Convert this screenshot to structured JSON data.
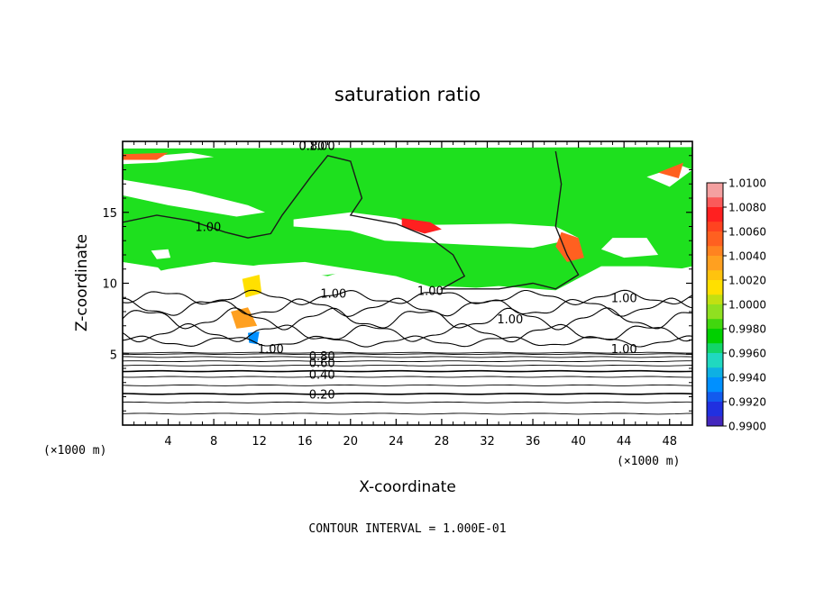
{
  "chart_data": {
    "type": "heatmap",
    "title": "saturation ratio",
    "xlabel": "X-coordinate",
    "ylabel": "Z-coordinate",
    "x_unit_note": "(×1000 m)",
    "x_unit_note_right": "(×1000 m)",
    "xlim": [
      0,
      50
    ],
    "ylim": [
      0,
      20
    ],
    "x_ticks": [
      4,
      8,
      12,
      16,
      20,
      24,
      28,
      32,
      36,
      40,
      44,
      48
    ],
    "y_ticks": [
      5,
      10,
      15
    ],
    "contour_interval_note": "CONTOUR INTERVAL = 1.000E-01",
    "colorbar": {
      "levels": [
        "1.0100",
        "1.0080",
        "1.0060",
        "1.0040",
        "1.0020",
        "1.0000",
        "0.9980",
        "0.9960",
        "0.9940",
        "0.9920",
        "0.9900"
      ],
      "colors": [
        "#f4a0a0",
        "#ff2020",
        "#ff6020",
        "#ffa020",
        "#ffe000",
        "#90e020",
        "#00d000",
        "#20d8c0",
        "#0090ff",
        "#2030e0",
        "#6020a0"
      ]
    },
    "contour_labels": [
      {
        "text": "1.00",
        "x": 17.5,
        "y": 19.7
      },
      {
        "text": "0.80",
        "x": 16.6,
        "y": 19.7
      },
      {
        "text": "1.00",
        "x": 7.5,
        "y": 14.0
      },
      {
        "text": "1.00",
        "x": 18.5,
        "y": 9.3
      },
      {
        "text": "1.00",
        "x": 27.0,
        "y": 9.5
      },
      {
        "text": "1.00",
        "x": 34.0,
        "y": 7.5
      },
      {
        "text": "1.00",
        "x": 44.0,
        "y": 9.0
      },
      {
        "text": "1.00",
        "x": 44.0,
        "y": 5.4
      },
      {
        "text": "1.00",
        "x": 13.0,
        "y": 5.4
      },
      {
        "text": "0.80",
        "x": 17.5,
        "y": 4.9
      },
      {
        "text": "0.60",
        "x": 17.5,
        "y": 4.4
      },
      {
        "text": "0.40",
        "x": 17.5,
        "y": 3.6
      },
      {
        "text": "0.20",
        "x": 17.5,
        "y": 2.2
      }
    ],
    "filled_regions": [
      {
        "level": "1.0000",
        "color": "#1ee01e",
        "polygon": [
          [
            0,
            19.3
          ],
          [
            50,
            19.3
          ],
          [
            50,
            11.0
          ],
          [
            46,
            11.2
          ],
          [
            42,
            11.2
          ],
          [
            38,
            9.5
          ],
          [
            33,
            9.8
          ],
          [
            28,
            9.5
          ],
          [
            24,
            10.5
          ],
          [
            20,
            11.0
          ],
          [
            16,
            11.5
          ],
          [
            12,
            11.3
          ],
          [
            8,
            10.8
          ],
          [
            4,
            11.0
          ],
          [
            0,
            11.5
          ]
        ]
      },
      {
        "level": "1.0000",
        "color": "#1ee01e",
        "polygon": [
          [
            0,
            11.5
          ],
          [
            3,
            11.2
          ],
          [
            5,
            9.5
          ],
          [
            7,
            8.5
          ],
          [
            10,
            9.5
          ],
          [
            13,
            10.0
          ],
          [
            12,
            11.2
          ],
          [
            8,
            11.0
          ],
          [
            4,
            11.2
          ],
          [
            0,
            11.8
          ]
        ]
      },
      {
        "level": "1.0000",
        "color": "#1ee01e",
        "polygon": [
          [
            18,
            8.6
          ],
          [
            22,
            9.5
          ],
          [
            20,
            10.8
          ],
          [
            17,
            10.5
          ]
        ]
      },
      {
        "level": "1.0000",
        "color": "#1ee01e",
        "polygon": [
          [
            0,
            19.5
          ],
          [
            50,
            19.6
          ],
          [
            50,
            19.3
          ],
          [
            0,
            19.2
          ]
        ]
      }
    ],
    "unsaturated_regions": [
      {
        "polygon": [
          [
            0,
            17.3
          ],
          [
            6,
            16.5
          ],
          [
            11,
            15.5
          ],
          [
            12.5,
            15.0
          ],
          [
            10,
            14.7
          ],
          [
            4,
            15.5
          ],
          [
            0,
            16.2
          ]
        ]
      },
      {
        "polygon": [
          [
            0,
            18.8
          ],
          [
            6,
            19.2
          ],
          [
            8,
            18.9
          ],
          [
            3,
            18.5
          ],
          [
            0,
            18.4
          ]
        ]
      },
      {
        "polygon": [
          [
            15,
            14.5
          ],
          [
            20,
            15.0
          ],
          [
            24,
            14.6
          ],
          [
            26,
            14.1
          ],
          [
            34,
            14.2
          ],
          [
            38,
            14.0
          ],
          [
            40,
            13.2
          ],
          [
            36,
            12.5
          ],
          [
            28,
            12.8
          ],
          [
            23,
            13.0
          ],
          [
            20,
            13.7
          ],
          [
            15,
            14.0
          ]
        ]
      },
      {
        "polygon": [
          [
            43,
            13.2
          ],
          [
            46,
            13.2
          ],
          [
            47,
            12.0
          ],
          [
            44,
            11.8
          ],
          [
            42,
            12.4
          ]
        ]
      },
      {
        "polygon": [
          [
            46,
            17.5
          ],
          [
            49,
            18.3
          ],
          [
            50,
            18.0
          ],
          [
            48,
            16.8
          ]
        ]
      },
      {
        "polygon": [
          [
            2.5,
            12.3
          ],
          [
            4,
            12.4
          ],
          [
            4.2,
            11.8
          ],
          [
            3,
            11.7
          ]
        ]
      },
      {
        "polygon": [
          [
            0,
            10.3
          ],
          [
            4,
            11.0
          ],
          [
            8,
            11.5
          ],
          [
            12,
            11.2
          ],
          [
            15,
            10.8
          ],
          [
            18,
            10.5
          ],
          [
            20,
            11.0
          ],
          [
            22,
            10.5
          ],
          [
            24,
            9.3
          ],
          [
            28,
            9.8
          ],
          [
            33,
            9.6
          ],
          [
            38,
            9.5
          ],
          [
            42,
            10.0
          ],
          [
            46,
            10.5
          ],
          [
            50,
            11.2
          ],
          [
            50,
            5.2
          ],
          [
            0,
            5.2
          ]
        ]
      }
    ],
    "extreme_regions": [
      {
        "level": "1.0080",
        "color": "#ff2020",
        "polygon": [
          [
            24.5,
            14.6
          ],
          [
            27,
            14.3
          ],
          [
            28,
            13.8
          ],
          [
            26.5,
            13.5
          ],
          [
            24.5,
            14.0
          ]
        ]
      },
      {
        "level": "1.0060",
        "color": "#ff6020",
        "polygon": [
          [
            38.5,
            13.6
          ],
          [
            40,
            13.2
          ],
          [
            40.5,
            11.8
          ],
          [
            39,
            11.5
          ],
          [
            38,
            12.6
          ]
        ]
      },
      {
        "level": "1.0060",
        "color": "#ff6020",
        "polygon": [
          [
            0,
            19.1
          ],
          [
            4,
            19.2
          ],
          [
            3,
            18.7
          ],
          [
            0,
            18.7
          ]
        ]
      },
      {
        "level": "1.0060",
        "color": "#ff6020",
        "polygon": [
          [
            47,
            17.8
          ],
          [
            49.2,
            18.5
          ],
          [
            48.8,
            17.4
          ]
        ]
      },
      {
        "level": "1.0040",
        "color": "#ffa020",
        "polygon": [
          [
            9.5,
            8.0
          ],
          [
            11,
            8.3
          ],
          [
            11.8,
            7.0
          ],
          [
            10,
            6.8
          ]
        ]
      },
      {
        "level": "1.0020",
        "color": "#ffe000",
        "polygon": [
          [
            10.5,
            10.3
          ],
          [
            12,
            10.6
          ],
          [
            12.2,
            9.3
          ],
          [
            10.8,
            9.0
          ]
        ]
      },
      {
        "level": "0.9940",
        "color": "#0090ff",
        "polygon": [
          [
            11,
            6.5
          ],
          [
            12,
            6.6
          ],
          [
            11.8,
            5.7
          ],
          [
            11.1,
            5.8
          ]
        ]
      }
    ],
    "bottom_contours_z": [
      0.8,
      1.6,
      2.2,
      2.8,
      3.4,
      3.8,
      4.2,
      4.5,
      4.8,
      5.0,
      5.1
    ],
    "ripple_bands": [
      {
        "z": 7.5,
        "amplitude": 0.6
      },
      {
        "z": 8.3,
        "amplitude": 0.5
      },
      {
        "z": 6.5,
        "amplitude": 0.5
      },
      {
        "z": 9.0,
        "amplitude": 0.4
      },
      {
        "z": 5.9,
        "amplitude": 0.3
      }
    ],
    "saturation_contour": [
      [
        0,
        14.3
      ],
      [
        3,
        14.8
      ],
      [
        6,
        14.4
      ],
      [
        9,
        13.6
      ],
      [
        11,
        13.2
      ],
      [
        13,
        13.5
      ],
      [
        14,
        14.8
      ],
      [
        16.5,
        17.5
      ],
      [
        18,
        19.0
      ],
      [
        20,
        18.6
      ],
      [
        21,
        16.0
      ],
      [
        20,
        14.8
      ],
      [
        24,
        14.2
      ],
      [
        27,
        13.2
      ],
      [
        29,
        12.0
      ],
      [
        30,
        10.5
      ],
      [
        28,
        9.6
      ],
      [
        33,
        9.6
      ],
      [
        36,
        10.0
      ],
      [
        38,
        9.6
      ],
      [
        40,
        10.6
      ],
      [
        39,
        12.0
      ],
      [
        38,
        14.0
      ],
      [
        38.5,
        17.0
      ],
      [
        38,
        19.3
      ]
    ]
  }
}
